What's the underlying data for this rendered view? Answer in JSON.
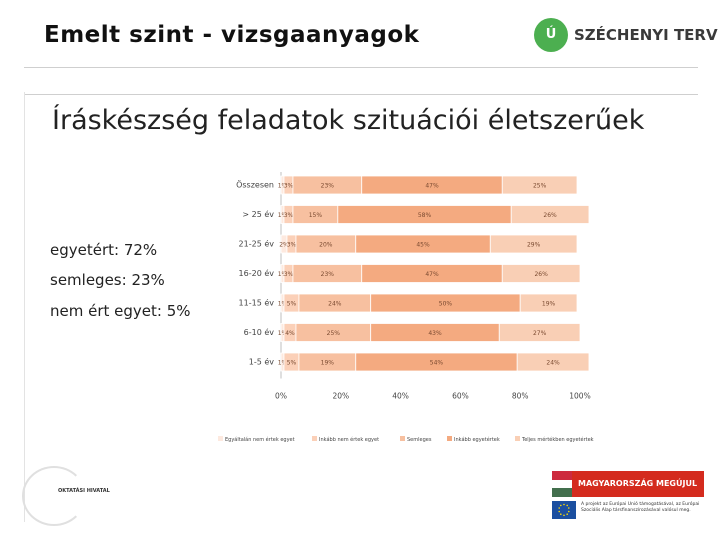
{
  "header": {
    "title": "Emelt szint - vizsgaanyagok",
    "logo_mark": "Ú",
    "logo_text": "SZÉCHENYI TERV"
  },
  "slide": {
    "title": "Íráskészség feladatok szituációi életszerűek"
  },
  "summary": {
    "agree": "egyetért: 72%",
    "neutral": "semleges: 23%",
    "disagree": "nem ért egyet: 5%"
  },
  "colors": {
    "series": [
      "#fde9df",
      "#fbd0b8",
      "#f7c0a0",
      "#f4aa80",
      "#f9cfb5"
    ],
    "grid": "#ffffff",
    "title_rule": "#cfcfcf"
  },
  "chart_data": {
    "type": "bar",
    "orientation": "horizontal",
    "stacked": true,
    "categories": [
      "Összesen",
      "> 25 év",
      "21-25 év",
      "16-20 év",
      "11-15 év",
      "6-10 év",
      "1-5 év"
    ],
    "x_ticks": [
      "0%",
      "20%",
      "40%",
      "60%",
      "80%",
      "100%"
    ],
    "xlim": [
      0,
      100
    ],
    "series": [
      {
        "name": "Egyáltalán nem értek egyet",
        "values": [
          1,
          1,
          2,
          1,
          1,
          1,
          1
        ]
      },
      {
        "name": "Inkább nem értek egyet",
        "values": [
          3,
          3,
          3,
          3,
          5,
          4,
          5
        ]
      },
      {
        "name": "Semleges",
        "values": [
          23,
          15,
          20,
          23,
          24,
          25,
          19
        ]
      },
      {
        "name": "Inkább egyetértek",
        "values": [
          47,
          58,
          45,
          47,
          50,
          43,
          54
        ]
      },
      {
        "name": "Teljes mértékben egyetértek",
        "values": [
          25,
          26,
          29,
          26,
          19,
          27,
          24
        ]
      }
    ],
    "labels": [
      [
        "1%",
        "3%",
        "23%",
        "47%",
        "25%"
      ],
      [
        "1%",
        "3%",
        "15%",
        "58%",
        "26%"
      ],
      [
        "2%",
        "3%",
        "20%",
        "45%",
        "29%"
      ],
      [
        "1%",
        "3%",
        "23%",
        "47%",
        "26%"
      ],
      [
        "1%",
        "5%",
        "24%",
        "50%",
        "19%"
      ],
      [
        "1%",
        "4%",
        "25%",
        "43%",
        "27%"
      ],
      [
        "1%",
        "5%",
        "19%",
        "54%",
        "24%"
      ]
    ],
    "legend_position": "bottom",
    "grid": true
  },
  "footer": {
    "office_logo_text": "OKTATÁSI HIVATAL",
    "banner_text": "MAGYARORSZÁG MEGÚJUL",
    "eu_text": "A projekt az Európai Unió támogatásával, az Európai Szociális Alap társfinanszírozásával valósul meg."
  }
}
